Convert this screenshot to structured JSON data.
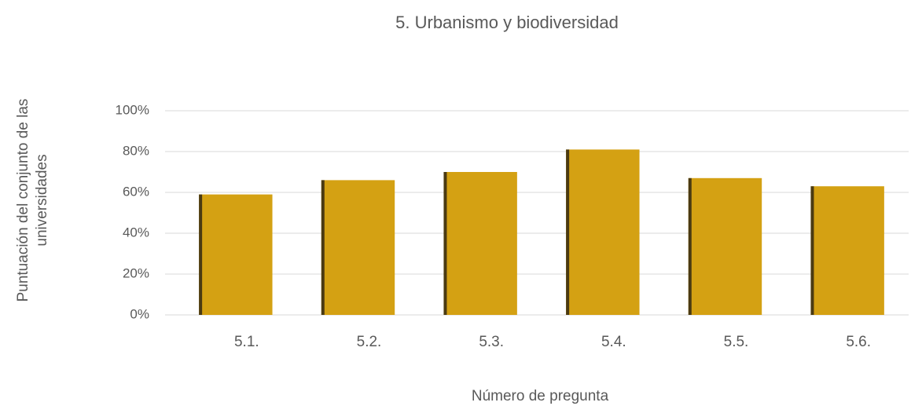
{
  "chart_data": {
    "type": "bar",
    "title": "5. Urbanismo y biodiversidad",
    "x_label": "Número de pregunta",
    "y_label": "Puntuación del conjunto de las universidades",
    "categories": [
      "5.1.",
      "5.2.",
      "5.3.",
      "5.4.",
      "5.5.",
      "5.6."
    ],
    "values": [
      59,
      66,
      70,
      81,
      67,
      63
    ],
    "color": "#d4a113",
    "edge_color": "#4a3a12",
    "ylim": [
      0,
      100
    ],
    "yticks": [
      {
        "value": 0,
        "label": "0%"
      },
      {
        "value": 20,
        "label": "20%"
      },
      {
        "value": 40,
        "label": "40%"
      },
      {
        "value": 60,
        "label": "60%"
      },
      {
        "value": 80,
        "label": "80%"
      },
      {
        "value": 100,
        "label": "100%"
      }
    ],
    "grid": true
  }
}
